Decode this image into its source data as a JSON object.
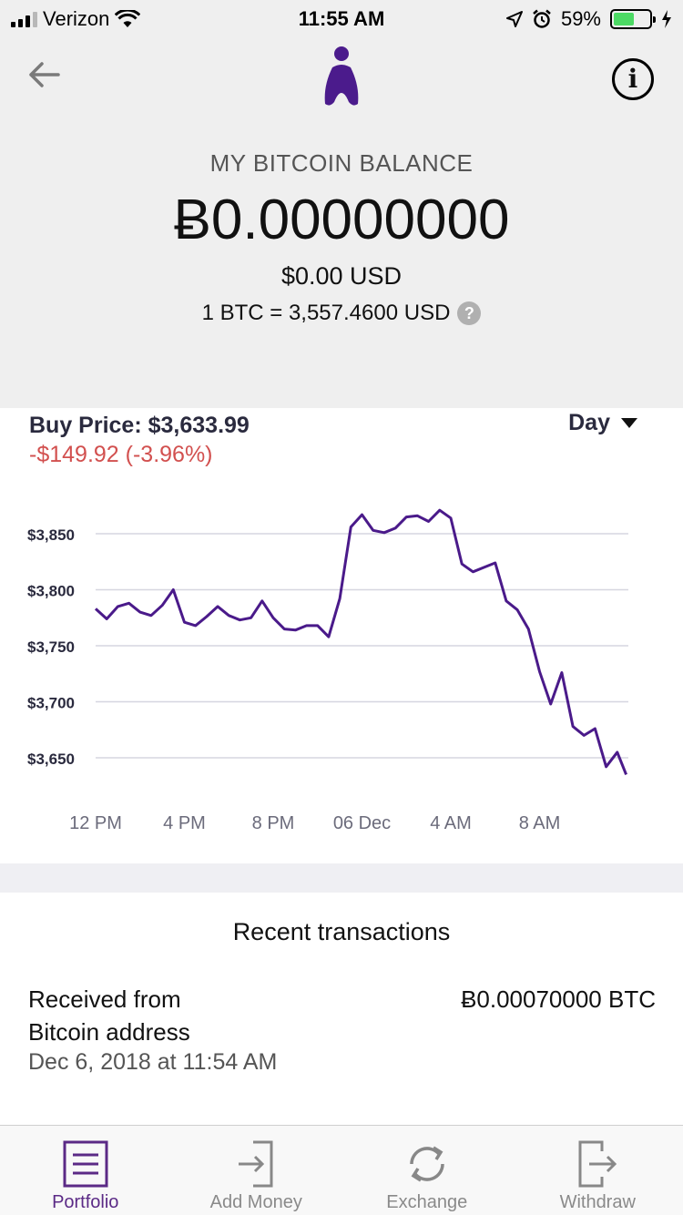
{
  "status_bar": {
    "carrier": "Verizon",
    "time": "11:55 AM",
    "battery": "59%",
    "battery_level": 0.59
  },
  "header": {
    "balance_label": "MY BITCOIN BALANCE",
    "balance_btc": "Ƀ0.00000000",
    "balance_usd": "$0.00 USD",
    "rate": "1 BTC = 3,557.4600 USD",
    "help_icon_text": "?",
    "info_icon_text": "i"
  },
  "price": {
    "buy_price": "Buy Price: $3,633.99",
    "change": "-$149.92 (-3.96%)",
    "range": "Day"
  },
  "chart_data": {
    "type": "line",
    "ylim": [
      3630,
      3880
    ],
    "yticks": [
      3650,
      3700,
      3750,
      3800,
      3850
    ],
    "ytick_labels": [
      "$3,650",
      "$3,700",
      "$3,750",
      "$3,800",
      "$3,850"
    ],
    "xtick_labels": [
      "12 PM",
      "4 PM",
      "8 PM",
      "06 Dec",
      "4 AM",
      "8 AM"
    ],
    "xtick_positions": [
      0,
      4,
      8,
      12,
      16,
      20
    ],
    "xlim": [
      0,
      24
    ],
    "grid": true,
    "color": "#4a1a8a",
    "points": [
      [
        0,
        3783
      ],
      [
        0.5,
        3774
      ],
      [
        1,
        3785
      ],
      [
        1.5,
        3788
      ],
      [
        2,
        3780
      ],
      [
        2.5,
        3777
      ],
      [
        3,
        3786
      ],
      [
        3.5,
        3800
      ],
      [
        4,
        3771
      ],
      [
        4.5,
        3768
      ],
      [
        5,
        3776
      ],
      [
        5.5,
        3785
      ],
      [
        6,
        3777
      ],
      [
        6.5,
        3773
      ],
      [
        7,
        3775
      ],
      [
        7.5,
        3790
      ],
      [
        8,
        3775
      ],
      [
        8.5,
        3765
      ],
      [
        9,
        3764
      ],
      [
        9.5,
        3768
      ],
      [
        10,
        3768
      ],
      [
        10.5,
        3758
      ],
      [
        11,
        3792
      ],
      [
        11.5,
        3856
      ],
      [
        12,
        3867
      ],
      [
        12.5,
        3853
      ],
      [
        13,
        3851
      ],
      [
        13.5,
        3855
      ],
      [
        14,
        3865
      ],
      [
        14.5,
        3866
      ],
      [
        15,
        3861
      ],
      [
        15.5,
        3871
      ],
      [
        16,
        3864
      ],
      [
        16.5,
        3823
      ],
      [
        17,
        3816
      ],
      [
        17.5,
        3820
      ],
      [
        18,
        3824
      ],
      [
        18.5,
        3790
      ],
      [
        19,
        3782
      ],
      [
        19.5,
        3765
      ],
      [
        20,
        3727
      ],
      [
        20.5,
        3698
      ],
      [
        21,
        3726
      ],
      [
        21.5,
        3678
      ],
      [
        22,
        3670
      ],
      [
        22.5,
        3676
      ],
      [
        23,
        3642
      ],
      [
        23.5,
        3655
      ],
      [
        23.9,
        3635
      ]
    ]
  },
  "transactions": {
    "title": "Recent transactions",
    "items": [
      {
        "desc_line1": "Received from",
        "desc_line2": "Bitcoin address",
        "date": "Dec 6, 2018 at 11:54 AM",
        "amount": "Ƀ0.00070000 BTC"
      }
    ]
  },
  "tabs": [
    {
      "label": "Portfolio",
      "icon": "portfolio-icon",
      "active": true
    },
    {
      "label": "Add Money",
      "icon": "add-money-icon",
      "active": false
    },
    {
      "label": "Exchange",
      "icon": "exchange-icon",
      "active": false
    },
    {
      "label": "Withdraw",
      "icon": "withdraw-icon",
      "active": false
    }
  ],
  "colors": {
    "brand": "#5b2a86",
    "negative": "#d2504f",
    "header_bg": "#efefef"
  }
}
